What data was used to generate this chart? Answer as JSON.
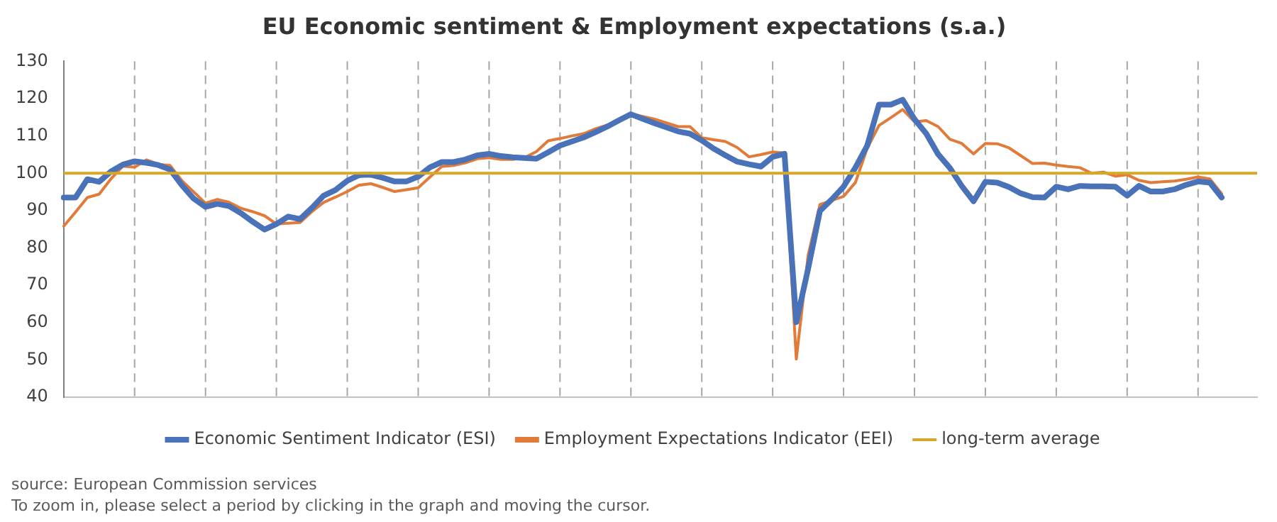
{
  "chart_data": {
    "type": "line",
    "title": "EU Economic sentiment & Employment expectations (s.a.)",
    "categories": [
      null,
      null,
      null,
      null,
      null,
      null,
      null,
      null,
      null,
      null,
      null,
      null,
      null,
      null,
      null,
      null,
      null,
      null,
      null,
      null,
      null,
      null,
      null,
      null,
      null,
      null,
      null,
      null,
      null,
      null,
      null,
      null,
      null,
      null,
      null,
      null,
      null,
      null,
      null,
      null,
      null,
      null,
      null,
      null,
      null,
      null,
      null,
      null,
      null,
      null,
      null,
      null,
      null,
      null,
      null,
      null,
      null,
      null,
      null,
      null,
      null,
      null,
      null,
      null,
      null,
      null,
      null,
      null,
      null,
      null,
      null,
      null,
      null,
      null,
      null,
      null,
      null,
      null,
      null,
      null,
      null,
      null,
      null,
      null,
      null,
      null,
      null,
      null,
      null,
      null,
      null,
      null,
      null,
      null,
      null,
      null,
      null,
      null,
      null,
      null,
      null,
      null
    ],
    "ylim": [
      40,
      130
    ],
    "yticks": [
      40,
      50,
      60,
      70,
      80,
      90,
      100,
      110,
      120,
      130
    ],
    "tick_labels": "y",
    "grid": "x",
    "legend": "bottom",
    "marker": "none",
    "line_style": "solid",
    "series": [
      {
        "name": "Economic Sentiment Indicator (ESI)",
        "color": "#4a72b8",
        "values": [
          93.5,
          93.5,
          98.4,
          97.7,
          100.5,
          102.3,
          103.2,
          102.8,
          102.2,
          101,
          96.8,
          93.2,
          91,
          91.8,
          91.2,
          89.3,
          87,
          84.9,
          86.4,
          88.4,
          87.7,
          90.7,
          94,
          95.5,
          98,
          99.5,
          99.6,
          98.8,
          97.8,
          97.8,
          99.1,
          101.6,
          103,
          103,
          103.7,
          104.8,
          105.2,
          104.6,
          104.3,
          104.1,
          103.9,
          105.6,
          107.4,
          108.5,
          109.6,
          111,
          112.5,
          114.2,
          115.8,
          114.6,
          113.4,
          112.3,
          111.2,
          110.6,
          108.8,
          106.6,
          104.8,
          103.1,
          102.4,
          101.8,
          104.4,
          105.2,
          60.1,
          74.4,
          89.9,
          93,
          96.4,
          101.5,
          107.4,
          118.4,
          118.4,
          119.7,
          114.5,
          110.6,
          105.1,
          101.4,
          96.6,
          92.5,
          97.7,
          97.5,
          96.3,
          94.6,
          93.6,
          93.5,
          96.4,
          95.7,
          96.6,
          96.5,
          96.5,
          96.4,
          94,
          96.6,
          95.1,
          95.1,
          95.7,
          96.9,
          97.8,
          97.5,
          93.5,
          null,
          null,
          null
        ]
      },
      {
        "name": "Employment Expectations Indicator (EEI)",
        "color": "#e07b39",
        "values": [
          85.8,
          89.6,
          93.5,
          94.4,
          98.5,
          101.9,
          101.6,
          103.6,
          102.4,
          102.1,
          98,
          95,
          92,
          93,
          92.2,
          90.6,
          89.7,
          88.6,
          86.4,
          86.6,
          86.8,
          89.7,
          92.2,
          93.6,
          95.1,
          96.8,
          97.2,
          96.2,
          95.1,
          95.6,
          96.1,
          99,
          101.8,
          102.1,
          102.8,
          103.9,
          104.2,
          103.7,
          103.7,
          104.2,
          105.8,
          108.7,
          109.3,
          110,
          110.6,
          111.9,
          112.9,
          113.8,
          116,
          115.2,
          114.5,
          113.5,
          112.5,
          112.5,
          109.5,
          109,
          108.5,
          106.9,
          104.4,
          105,
          105.7,
          105.4,
          50.2,
          78,
          91.6,
          92.7,
          93.8,
          97.5,
          106.7,
          112.8,
          114.9,
          117.1,
          113.8,
          114.1,
          112.5,
          109.1,
          108,
          105.2,
          108,
          107.9,
          106.8,
          104.7,
          102.6,
          102.7,
          102.2,
          101.8,
          101.5,
          100,
          100.3,
          99.2,
          99.6,
          98.1,
          97.5,
          97.7,
          97.9,
          98.4,
          99,
          98.5,
          94.5,
          null,
          null,
          null
        ]
      }
    ],
    "ref_lines": [
      {
        "axis": "y",
        "value": 100,
        "label": "long-term average",
        "color": "#d4a82a",
        "line_style": "solid"
      }
    ],
    "annotations": [
      "source: European Commission services",
      "To zoom in, please select a period by clicking in the graph and moving the cursor."
    ]
  }
}
